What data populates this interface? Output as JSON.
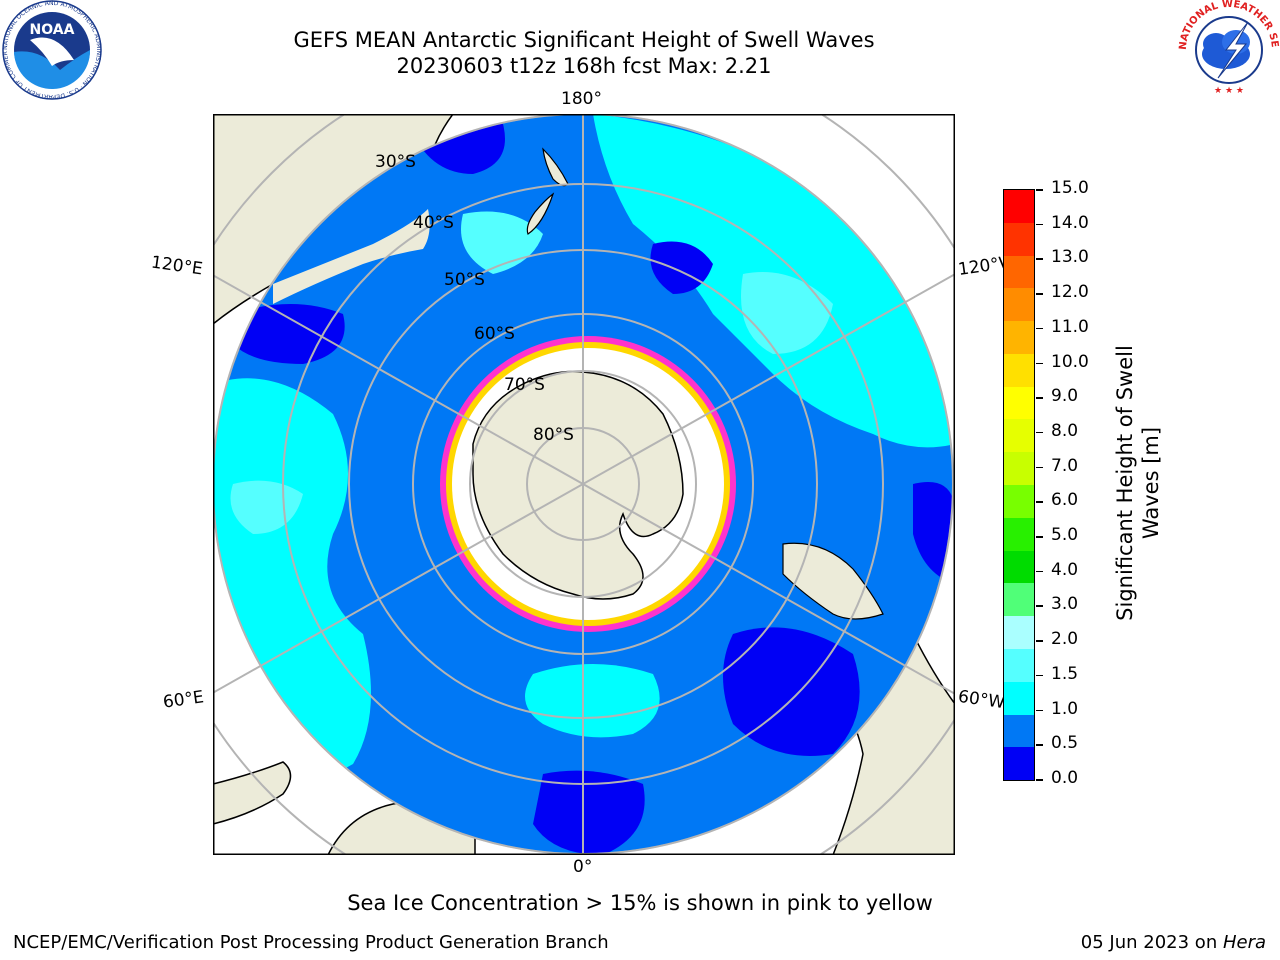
{
  "header": {
    "title_line1": "GEFS MEAN Antarctic Significant Height of Swell Waves",
    "title_line2": "20230603 t12z 168h fcst   Max: 2.21"
  },
  "logos": {
    "left": "NOAA",
    "left_ring": "NATIONAL OCEANIC AND ATMOSPHERIC ADMINISTRATION · U.S. DEPARTMENT OF COMMERCE",
    "right_ring": "NATIONAL WEATHER SERVICE"
  },
  "map": {
    "longitude_labels": {
      "top": "180°",
      "bottom": "0°",
      "upper_left": "120°E",
      "lower_left": "60°E",
      "upper_right": "120°W",
      "lower_right": "60°W"
    },
    "latitude_labels": [
      "30°S",
      "40°S",
      "50°S",
      "60°S",
      "70°S",
      "80°S"
    ],
    "colors": {
      "land": "#ecebd9",
      "ocean_low": "#0000f5",
      "ocean_mid": "#0078f5",
      "ocean_high": "#00ffff",
      "ocean_higher": "#55ffff",
      "ice_edge": "#ff33cc",
      "ice_yellow": "#ffd700",
      "grid": "#b4b4b4"
    }
  },
  "colorbar": {
    "ylabel_line1": "Significant Height of Swell",
    "ylabel_line2": "Waves [m]",
    "ticks": [
      "15.0",
      "14.0",
      "13.0",
      "12.0",
      "11.0",
      "10.0",
      "9.0",
      "8.0",
      "7.0",
      "6.0",
      "5.0",
      "4.0",
      "3.0",
      "2.0",
      "1.5",
      "1.0",
      "0.5",
      "0.0"
    ],
    "bands": [
      "#ff0000",
      "#ff3300",
      "#ff6600",
      "#ff8c00",
      "#ffb400",
      "#ffe000",
      "#ffff00",
      "#e6ff00",
      "#c8ff00",
      "#78ff00",
      "#28f000",
      "#00dc00",
      "#50ff78",
      "#aaffff",
      "#55ffff",
      "#00ffff",
      "#0078f5",
      "#0000f5"
    ]
  },
  "caption": "Sea Ice Concentration > 15% is shown in pink to yellow",
  "footer": {
    "left": "NCEP/EMC/Verification Post Processing Product Generation Branch",
    "right_date": "05 Jun 2023 on ",
    "right_host": "Hera"
  }
}
